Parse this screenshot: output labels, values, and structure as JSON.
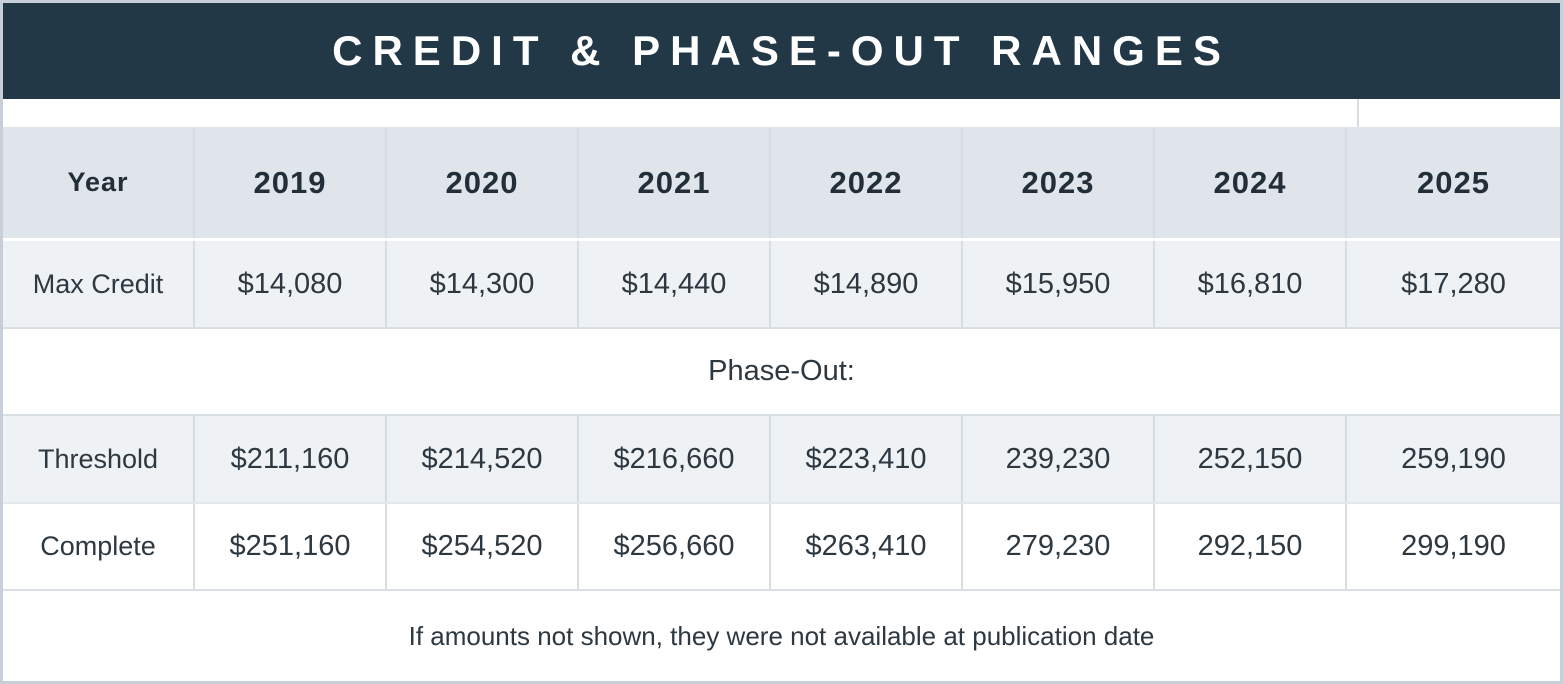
{
  "title": "CREDIT & PHASE-OUT RANGES",
  "colors": {
    "title_bar_bg": "#223847",
    "title_text": "#ffffff",
    "header_row_bg": "#dfe5ea",
    "shaded_row_bg": "#eef2f5",
    "white_row_bg": "#ffffff",
    "grid_line": "#d5dce2",
    "outer_border": "#c7d0d8",
    "body_text": "#2d3841"
  },
  "table": {
    "columns": [
      "Year",
      "2019",
      "2020",
      "2021",
      "2022",
      "2023",
      "2024",
      "2025"
    ],
    "max_credit": {
      "label": "Max Credit",
      "values": [
        "$14,080",
        "$14,300",
        "$14,440",
        "$14,890",
        "$15,950",
        "$16,810",
        "$17,280"
      ]
    },
    "phase_out_label": "Phase-Out:",
    "threshold": {
      "label": "Threshold",
      "values": [
        "$211,160",
        "$214,520",
        "$216,660",
        "$223,410",
        "239,230",
        "252,150",
        "259,190"
      ]
    },
    "complete": {
      "label": "Complete",
      "values": [
        "$251,160",
        "$254,520",
        "$256,660",
        "$263,410",
        "279,230",
        "292,150",
        "299,190"
      ]
    },
    "footer_note": "If amounts not shown, they were not available at publication date"
  },
  "chart_data": {
    "type": "table",
    "title": "CREDIT & PHASE-OUT RANGES",
    "columns": [
      "Year",
      "2019",
      "2020",
      "2021",
      "2022",
      "2023",
      "2024",
      "2025"
    ],
    "rows": [
      [
        "Max Credit",
        "$14,080",
        "$14,300",
        "$14,440",
        "$14,890",
        "$15,950",
        "$16,810",
        "$17,280"
      ],
      [
        "Phase-Out:",
        "",
        "",
        "",
        "",
        "",
        "",
        ""
      ],
      [
        "Threshold",
        "$211,160",
        "$214,520",
        "$216,660",
        "$223,410",
        "239,230",
        "252,150",
        "259,190"
      ],
      [
        "Complete",
        "$251,160",
        "$254,520",
        "$256,660",
        "$263,410",
        "279,230",
        "292,150",
        "299,190"
      ]
    ],
    "footnote": "If amounts not shown, they were not available at publication date"
  }
}
